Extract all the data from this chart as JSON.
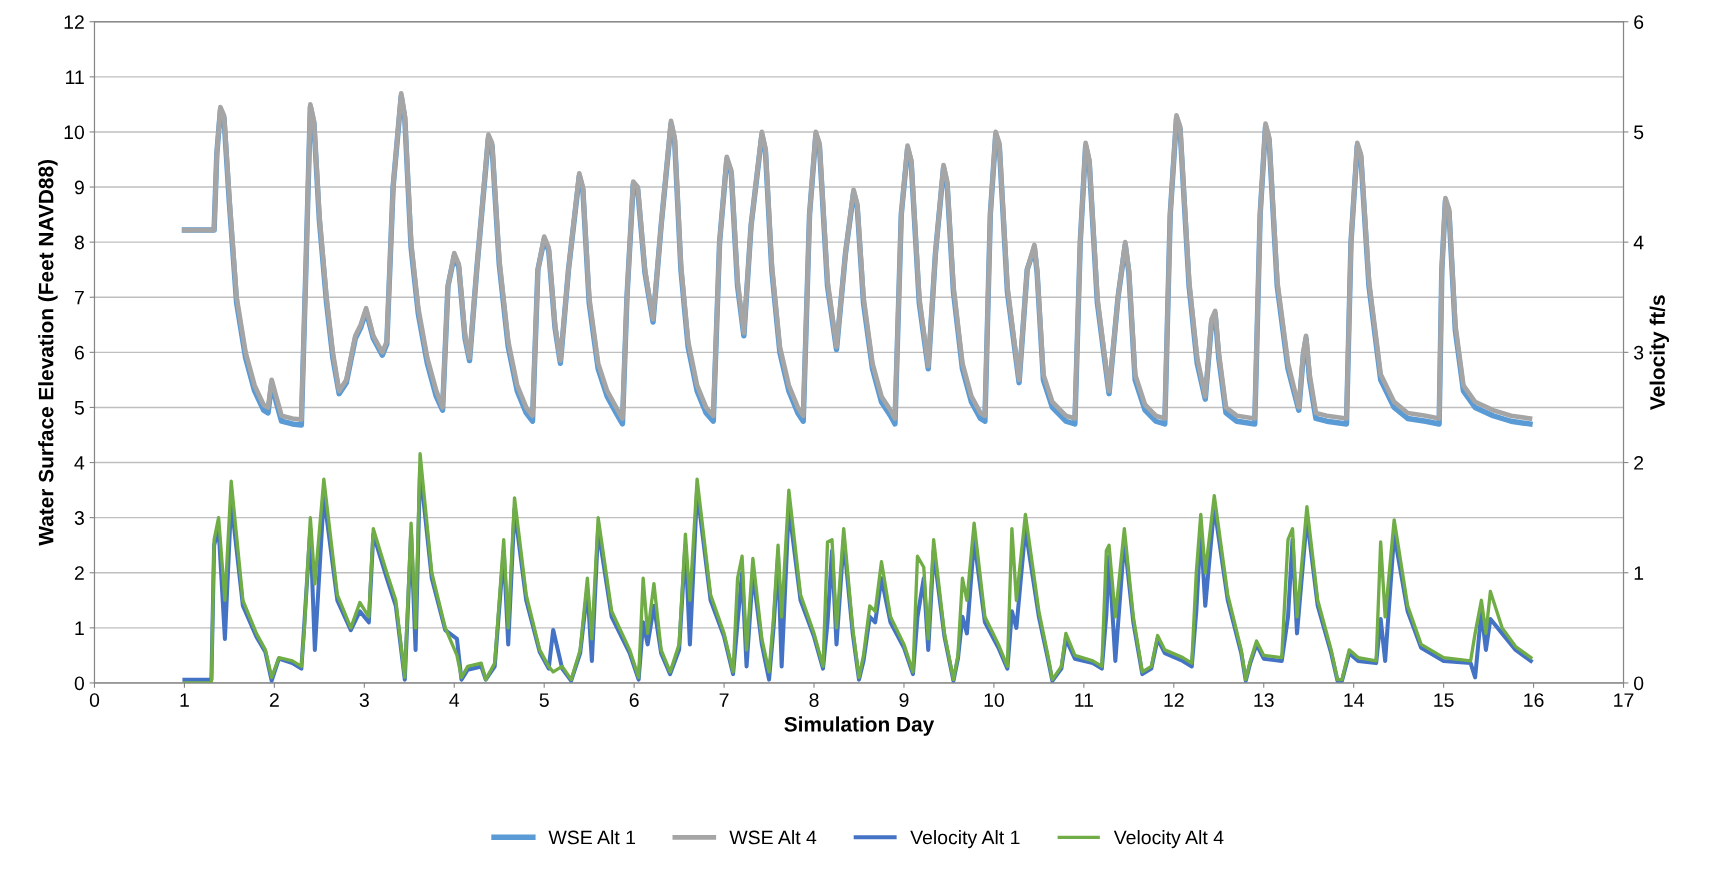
{
  "chart_data": {
    "type": "line",
    "xlabel": "Simulation Day",
    "ylabel": "Water Surface Elevation (Feet NAVD88)",
    "y2label": "Velocity ft/s",
    "xlim": [
      0,
      17
    ],
    "xticks": [
      0,
      1,
      2,
      3,
      4,
      5,
      6,
      7,
      8,
      9,
      10,
      11,
      12,
      13,
      14,
      15,
      16,
      17
    ],
    "ylim": [
      0,
      12
    ],
    "yticks": [
      0,
      1,
      2,
      3,
      4,
      5,
      6,
      7,
      8,
      9,
      10,
      11,
      12
    ],
    "y2lim": [
      0,
      6
    ],
    "y2ticks": [
      0,
      1,
      2,
      3,
      4,
      5,
      6
    ],
    "grid": "y",
    "legend": "bottom",
    "marker": "none",
    "line_style": "solid",
    "series": [
      {
        "name": "WSE Alt 1",
        "color": "#5b9bd5",
        "x": [
          1.0,
          1.33,
          1.36,
          1.4,
          1.44,
          1.5,
          1.58,
          1.68,
          1.78,
          1.88,
          1.93,
          1.97,
          2.02,
          2.08,
          2.2,
          2.3,
          2.35,
          2.4,
          2.44,
          2.5,
          2.58,
          2.65,
          2.72,
          2.8,
          2.9,
          2.96,
          3.02,
          3.1,
          3.2,
          3.25,
          3.32,
          3.41,
          3.45,
          3.52,
          3.6,
          3.7,
          3.8,
          3.87,
          3.93,
          4.0,
          4.05,
          4.12,
          4.17,
          4.25,
          4.38,
          4.42,
          4.5,
          4.6,
          4.7,
          4.8,
          4.87,
          4.93,
          5.0,
          5.05,
          5.12,
          5.18,
          5.27,
          5.39,
          5.43,
          5.5,
          5.6,
          5.7,
          5.8,
          5.87,
          5.92,
          5.99,
          6.04,
          6.12,
          6.21,
          6.3,
          6.41,
          6.45,
          6.52,
          6.6,
          6.7,
          6.8,
          6.88,
          6.95,
          7.03,
          7.08,
          7.15,
          7.22,
          7.3,
          7.42,
          7.46,
          7.53,
          7.62,
          7.72,
          7.82,
          7.88,
          7.95,
          8.02,
          8.06,
          8.15,
          8.25,
          8.35,
          8.44,
          8.48,
          8.55,
          8.65,
          8.75,
          8.85,
          8.9,
          8.97,
          9.04,
          9.08,
          9.17,
          9.27,
          9.35,
          9.44,
          9.48,
          9.55,
          9.65,
          9.75,
          9.85,
          9.9,
          9.96,
          10.02,
          10.06,
          10.15,
          10.28,
          10.37,
          10.45,
          10.48,
          10.55,
          10.65,
          10.8,
          10.9,
          10.96,
          11.02,
          11.06,
          11.15,
          11.28,
          11.38,
          11.46,
          11.5,
          11.57,
          11.68,
          11.8,
          11.9,
          11.96,
          12.03,
          12.07,
          12.17,
          12.26,
          12.35,
          12.42,
          12.46,
          12.5,
          12.58,
          12.7,
          12.9,
          12.96,
          13.02,
          13.06,
          13.15,
          13.27,
          13.39,
          13.44,
          13.47,
          13.51,
          13.58,
          13.7,
          13.92,
          13.97,
          14.04,
          14.08,
          14.17,
          14.3,
          14.45,
          14.6,
          14.8,
          14.95,
          14.98,
          15.02,
          15.06,
          15.13,
          15.22,
          15.35,
          15.55,
          15.75,
          15.96
        ],
        "values": [
          8.22,
          8.22,
          9.6,
          10.4,
          10.25,
          8.7,
          6.9,
          5.9,
          5.3,
          4.95,
          4.9,
          5.45,
          5.1,
          4.75,
          4.7,
          4.68,
          7.5,
          10.45,
          10.15,
          8.4,
          6.9,
          5.9,
          5.25,
          5.45,
          6.25,
          6.45,
          6.75,
          6.25,
          5.95,
          6.15,
          9.0,
          10.65,
          10.25,
          7.9,
          6.7,
          5.8,
          5.2,
          4.95,
          7.2,
          7.75,
          7.55,
          6.25,
          5.85,
          7.5,
          9.9,
          9.75,
          7.6,
          6.1,
          5.3,
          4.9,
          4.75,
          7.5,
          8.05,
          7.85,
          6.45,
          5.8,
          7.5,
          9.2,
          8.95,
          6.9,
          5.7,
          5.2,
          4.9,
          4.7,
          7.0,
          9.05,
          8.95,
          7.45,
          6.55,
          8.3,
          10.15,
          9.85,
          7.5,
          6.1,
          5.3,
          4.9,
          4.75,
          8.0,
          9.5,
          9.25,
          7.2,
          6.3,
          8.3,
          9.95,
          9.65,
          7.5,
          6.0,
          5.3,
          4.9,
          4.75,
          8.5,
          9.95,
          9.75,
          7.2,
          6.05,
          7.8,
          8.9,
          8.65,
          6.9,
          5.7,
          5.1,
          4.85,
          4.7,
          8.5,
          9.7,
          9.45,
          6.9,
          5.7,
          7.8,
          9.35,
          9.05,
          7.1,
          5.7,
          5.1,
          4.8,
          4.75,
          8.5,
          9.95,
          9.75,
          7.1,
          5.45,
          7.5,
          7.9,
          7.45,
          5.5,
          5.0,
          4.75,
          4.7,
          8.0,
          9.75,
          9.45,
          6.9,
          5.25,
          7.0,
          7.95,
          7.45,
          5.5,
          4.95,
          4.75,
          4.7,
          8.5,
          10.25,
          10.05,
          7.2,
          5.8,
          5.15,
          6.55,
          6.7,
          5.9,
          4.9,
          4.75,
          4.7,
          8.5,
          10.1,
          9.85,
          7.2,
          5.7,
          4.95,
          5.95,
          6.25,
          5.5,
          4.8,
          4.75,
          4.7,
          8.0,
          9.75,
          9.55,
          7.2,
          5.5,
          5.0,
          4.8,
          4.75,
          4.7,
          7.5,
          8.75,
          8.55,
          6.4,
          5.3,
          5.0,
          4.85,
          4.75,
          4.7
        ]
      },
      {
        "name": "WSE Alt 4",
        "color": "#a5a5a5",
        "x": [
          1.0,
          1.33,
          1.36,
          1.4,
          1.44,
          1.5,
          1.58,
          1.68,
          1.78,
          1.88,
          1.93,
          1.97,
          2.02,
          2.08,
          2.2,
          2.3,
          2.35,
          2.4,
          2.44,
          2.5,
          2.58,
          2.65,
          2.72,
          2.8,
          2.9,
          2.96,
          3.02,
          3.1,
          3.2,
          3.25,
          3.32,
          3.41,
          3.45,
          3.52,
          3.6,
          3.7,
          3.8,
          3.87,
          3.93,
          4.0,
          4.05,
          4.12,
          4.17,
          4.25,
          4.38,
          4.42,
          4.5,
          4.6,
          4.7,
          4.8,
          4.87,
          4.93,
          5.0,
          5.05,
          5.12,
          5.18,
          5.27,
          5.39,
          5.43,
          5.5,
          5.6,
          5.7,
          5.8,
          5.87,
          5.92,
          5.99,
          6.04,
          6.12,
          6.21,
          6.3,
          6.41,
          6.45,
          6.52,
          6.6,
          6.7,
          6.8,
          6.88,
          6.95,
          7.03,
          7.08,
          7.15,
          7.22,
          7.3,
          7.42,
          7.46,
          7.53,
          7.62,
          7.72,
          7.82,
          7.88,
          7.95,
          8.02,
          8.06,
          8.15,
          8.25,
          8.35,
          8.44,
          8.48,
          8.55,
          8.65,
          8.75,
          8.85,
          8.9,
          8.97,
          9.04,
          9.08,
          9.17,
          9.27,
          9.35,
          9.44,
          9.48,
          9.55,
          9.65,
          9.75,
          9.85,
          9.9,
          9.96,
          10.02,
          10.06,
          10.15,
          10.28,
          10.37,
          10.45,
          10.48,
          10.55,
          10.65,
          10.8,
          10.9,
          10.96,
          11.02,
          11.06,
          11.15,
          11.28,
          11.38,
          11.46,
          11.5,
          11.57,
          11.68,
          11.8,
          11.9,
          11.96,
          12.03,
          12.07,
          12.17,
          12.26,
          12.35,
          12.42,
          12.46,
          12.5,
          12.58,
          12.7,
          12.9,
          12.96,
          13.02,
          13.06,
          13.15,
          13.27,
          13.39,
          13.44,
          13.47,
          13.51,
          13.58,
          13.7,
          13.92,
          13.97,
          14.04,
          14.08,
          14.17,
          14.3,
          14.45,
          14.6,
          14.8,
          14.95,
          14.98,
          15.02,
          15.06,
          15.13,
          15.22,
          15.35,
          15.55,
          15.75,
          15.96
        ],
        "values": [
          8.22,
          8.22,
          9.6,
          10.45,
          10.3,
          8.8,
          7.0,
          6.0,
          5.4,
          5.05,
          5.0,
          5.5,
          5.2,
          4.85,
          4.8,
          4.78,
          7.5,
          10.5,
          10.2,
          8.5,
          7.0,
          6.0,
          5.3,
          5.5,
          6.3,
          6.5,
          6.8,
          6.3,
          6.0,
          6.2,
          9.0,
          10.7,
          10.3,
          8.0,
          6.8,
          5.9,
          5.3,
          5.0,
          7.2,
          7.8,
          7.6,
          6.3,
          5.9,
          7.5,
          9.95,
          9.8,
          7.7,
          6.2,
          5.4,
          5.0,
          4.85,
          7.5,
          8.1,
          7.9,
          6.5,
          5.85,
          7.5,
          9.25,
          9.0,
          7.0,
          5.8,
          5.3,
          5.0,
          4.8,
          7.0,
          9.1,
          9.0,
          7.5,
          6.6,
          8.3,
          10.2,
          9.9,
          7.6,
          6.2,
          5.4,
          5.0,
          4.85,
          8.0,
          9.55,
          9.3,
          7.3,
          6.35,
          8.3,
          10.0,
          9.7,
          7.6,
          6.1,
          5.4,
          5.0,
          4.85,
          8.5,
          10.0,
          9.8,
          7.3,
          6.1,
          7.8,
          8.95,
          8.7,
          7.0,
          5.8,
          5.2,
          4.95,
          4.8,
          8.5,
          9.75,
          9.5,
          7.0,
          5.75,
          7.8,
          9.4,
          9.1,
          7.2,
          5.8,
          5.2,
          4.9,
          4.85,
          8.5,
          10.0,
          9.8,
          7.2,
          5.5,
          7.5,
          7.95,
          7.5,
          5.6,
          5.1,
          4.85,
          4.8,
          8.0,
          9.8,
          9.5,
          7.0,
          5.3,
          7.0,
          8.0,
          7.5,
          5.6,
          5.05,
          4.85,
          4.8,
          8.5,
          10.3,
          10.1,
          7.3,
          5.9,
          5.2,
          6.6,
          6.75,
          6.0,
          5.0,
          4.85,
          4.8,
          8.5,
          10.15,
          9.9,
          7.3,
          5.8,
          5.0,
          6.0,
          6.3,
          5.6,
          4.9,
          4.85,
          4.8,
          8.0,
          9.8,
          9.6,
          7.3,
          5.6,
          5.1,
          4.9,
          4.85,
          4.8,
          7.5,
          8.8,
          8.6,
          6.5,
          5.4,
          5.1,
          4.95,
          4.85,
          4.8
        ]
      },
      {
        "name": "Velocity Alt 1",
        "color": "#4472c4",
        "axis": "y2",
        "x": [
          1.0,
          1.3,
          1.33,
          1.38,
          1.45,
          1.52,
          1.65,
          1.8,
          1.9,
          1.97,
          2.05,
          2.2,
          2.3,
          2.33,
          2.4,
          2.45,
          2.55,
          2.7,
          2.85,
          2.95,
          3.05,
          3.1,
          3.25,
          3.35,
          3.45,
          3.52,
          3.57,
          3.62,
          3.75,
          3.9,
          4.03,
          4.08,
          4.15,
          4.3,
          4.35,
          4.45,
          4.55,
          4.6,
          4.67,
          4.8,
          4.95,
          5.05,
          5.1,
          5.2,
          5.3,
          5.4,
          5.48,
          5.53,
          5.6,
          5.75,
          5.95,
          6.05,
          6.1,
          6.15,
          6.22,
          6.3,
          6.4,
          6.5,
          6.57,
          6.62,
          6.7,
          6.85,
          7.0,
          7.1,
          7.15,
          7.2,
          7.25,
          7.32,
          7.42,
          7.5,
          7.55,
          7.6,
          7.64,
          7.72,
          7.85,
          8.0,
          8.1,
          8.15,
          8.2,
          8.25,
          8.33,
          8.43,
          8.5,
          8.55,
          8.62,
          8.68,
          8.75,
          8.85,
          9.0,
          9.1,
          9.15,
          9.22,
          9.27,
          9.33,
          9.45,
          9.55,
          9.6,
          9.65,
          9.7,
          9.78,
          9.9,
          10.05,
          10.15,
          10.2,
          10.25,
          10.35,
          10.5,
          10.6,
          10.65,
          10.75,
          10.8,
          10.9,
          11.1,
          11.2,
          11.25,
          11.28,
          11.35,
          11.45,
          11.55,
          11.65,
          11.75,
          11.82,
          11.9,
          12.1,
          12.2,
          12.25,
          12.3,
          12.35,
          12.45,
          12.6,
          12.75,
          12.8,
          12.85,
          12.92,
          13.0,
          13.2,
          13.27,
          13.32,
          13.37,
          13.48,
          13.6,
          13.75,
          13.82,
          13.87,
          13.95,
          14.05,
          14.25,
          14.3,
          14.35,
          14.45,
          14.6,
          14.75,
          15.0,
          15.3,
          15.35,
          15.42,
          15.47,
          15.52,
          15.65,
          15.8,
          15.97
        ],
        "values": [
          0.03,
          0.03,
          1.25,
          1.4,
          0.4,
          1.65,
          0.7,
          0.42,
          0.28,
          0.02,
          0.22,
          0.18,
          0.13,
          0.5,
          1.4,
          0.3,
          1.7,
          0.75,
          0.48,
          0.65,
          0.55,
          1.35,
          0.95,
          0.7,
          0.03,
          1.35,
          0.3,
          1.95,
          0.95,
          0.48,
          0.4,
          0.03,
          0.12,
          0.15,
          0.03,
          0.15,
          1.2,
          0.35,
          1.58,
          0.75,
          0.28,
          0.13,
          0.48,
          0.13,
          0.02,
          0.27,
          0.85,
          0.2,
          1.4,
          0.6,
          0.27,
          0.03,
          0.55,
          0.35,
          0.7,
          0.27,
          0.08,
          0.3,
          1.25,
          0.35,
          1.75,
          0.75,
          0.42,
          0.08,
          0.55,
          1.0,
          0.15,
          1.0,
          0.35,
          0.03,
          0.5,
          1.15,
          0.15,
          1.6,
          0.75,
          0.42,
          0.13,
          0.55,
          1.2,
          0.35,
          1.3,
          0.45,
          0.03,
          0.2,
          0.6,
          0.55,
          0.95,
          0.55,
          0.32,
          0.08,
          0.6,
          0.95,
          0.3,
          1.2,
          0.42,
          0.02,
          0.22,
          0.6,
          0.45,
          1.3,
          0.55,
          0.32,
          0.13,
          0.65,
          0.5,
          1.4,
          0.6,
          0.22,
          0.02,
          0.13,
          0.4,
          0.22,
          0.18,
          0.13,
          0.62,
          1.15,
          0.2,
          1.3,
          0.55,
          0.08,
          0.13,
          0.4,
          0.27,
          0.2,
          0.15,
          0.65,
          1.4,
          0.7,
          1.6,
          0.75,
          0.27,
          0.02,
          0.18,
          0.35,
          0.22,
          0.2,
          0.6,
          1.3,
          0.45,
          1.5,
          0.7,
          0.27,
          0.02,
          0.02,
          0.27,
          0.2,
          0.18,
          0.58,
          0.2,
          1.35,
          0.65,
          0.32,
          0.2,
          0.18,
          0.05,
          0.65,
          0.3,
          0.58,
          0.45,
          0.3,
          0.2
        ]
      },
      {
        "name": "Velocity Alt 4",
        "color": "#70ad47",
        "axis": "y2",
        "x": [
          1.0,
          1.3,
          1.33,
          1.38,
          1.45,
          1.52,
          1.65,
          1.8,
          1.9,
          1.97,
          2.05,
          2.2,
          2.3,
          2.33,
          2.4,
          2.45,
          2.55,
          2.7,
          2.85,
          2.95,
          3.05,
          3.1,
          3.25,
          3.35,
          3.45,
          3.52,
          3.57,
          3.62,
          3.75,
          3.9,
          4.03,
          4.08,
          4.15,
          4.3,
          4.35,
          4.45,
          4.55,
          4.6,
          4.67,
          4.8,
          4.95,
          5.05,
          5.1,
          5.2,
          5.3,
          5.4,
          5.48,
          5.53,
          5.6,
          5.75,
          5.95,
          6.05,
          6.1,
          6.15,
          6.22,
          6.3,
          6.4,
          6.5,
          6.57,
          6.62,
          6.7,
          6.85,
          7.0,
          7.1,
          7.15,
          7.2,
          7.25,
          7.32,
          7.42,
          7.5,
          7.55,
          7.6,
          7.64,
          7.72,
          7.85,
          8.0,
          8.1,
          8.15,
          8.2,
          8.25,
          8.33,
          8.43,
          8.5,
          8.55,
          8.62,
          8.68,
          8.75,
          8.85,
          9.0,
          9.1,
          9.15,
          9.22,
          9.27,
          9.33,
          9.45,
          9.55,
          9.6,
          9.65,
          9.7,
          9.78,
          9.9,
          10.05,
          10.15,
          10.2,
          10.25,
          10.35,
          10.5,
          10.6,
          10.65,
          10.75,
          10.8,
          10.9,
          11.1,
          11.2,
          11.25,
          11.28,
          11.35,
          11.45,
          11.55,
          11.65,
          11.75,
          11.82,
          11.9,
          12.1,
          12.2,
          12.25,
          12.3,
          12.35,
          12.45,
          12.6,
          12.75,
          12.8,
          12.85,
          12.92,
          13.0,
          13.2,
          13.27,
          13.32,
          13.37,
          13.48,
          13.6,
          13.75,
          13.82,
          13.87,
          13.95,
          14.05,
          14.25,
          14.3,
          14.35,
          14.45,
          14.6,
          14.75,
          15.0,
          15.3,
          15.35,
          15.42,
          15.47,
          15.52,
          15.65,
          15.8,
          15.97
        ],
        "values": [
          0,
          0,
          1.3,
          1.5,
          0.75,
          1.83,
          0.75,
          0.45,
          0.3,
          0.05,
          0.23,
          0.2,
          0.15,
          0.45,
          1.5,
          0.9,
          1.85,
          0.8,
          0.5,
          0.73,
          0.6,
          1.4,
          1.0,
          0.75,
          0.05,
          1.45,
          0.5,
          2.08,
          1.0,
          0.5,
          0.25,
          0.05,
          0.15,
          0.18,
          0.03,
          0.18,
          1.3,
          0.5,
          1.68,
          0.8,
          0.3,
          0.15,
          0.1,
          0.15,
          0.03,
          0.3,
          0.95,
          0.4,
          1.5,
          0.65,
          0.3,
          0.05,
          0.95,
          0.45,
          0.9,
          0.3,
          0.1,
          0.35,
          1.35,
          0.75,
          1.85,
          0.8,
          0.45,
          0.1,
          0.95,
          1.15,
          0.3,
          1.13,
          0.4,
          0.1,
          0.6,
          1.25,
          0.6,
          1.75,
          0.8,
          0.45,
          0.15,
          1.28,
          1.3,
          0.5,
          1.4,
          0.5,
          0.05,
          0.25,
          0.7,
          0.65,
          1.1,
          0.6,
          0.35,
          0.1,
          1.15,
          1.05,
          0.4,
          1.3,
          0.45,
          0.03,
          0.25,
          0.95,
          0.75,
          1.45,
          0.6,
          0.35,
          0.15,
          1.4,
          0.75,
          1.53,
          0.65,
          0.25,
          0.03,
          0.15,
          0.45,
          0.25,
          0.2,
          0.15,
          1.2,
          1.25,
          0.6,
          1.4,
          0.6,
          0.1,
          0.15,
          0.43,
          0.3,
          0.23,
          0.18,
          1.0,
          1.53,
          1.0,
          1.7,
          0.8,
          0.3,
          0.03,
          0.2,
          0.38,
          0.25,
          0.23,
          1.3,
          1.4,
          0.6,
          1.6,
          0.75,
          0.3,
          0.03,
          0.03,
          0.3,
          0.23,
          0.2,
          1.28,
          0.6,
          1.48,
          0.7,
          0.35,
          0.23,
          0.2,
          0.45,
          0.75,
          0.45,
          0.83,
          0.5,
          0.33,
          0.23
        ]
      }
    ]
  }
}
